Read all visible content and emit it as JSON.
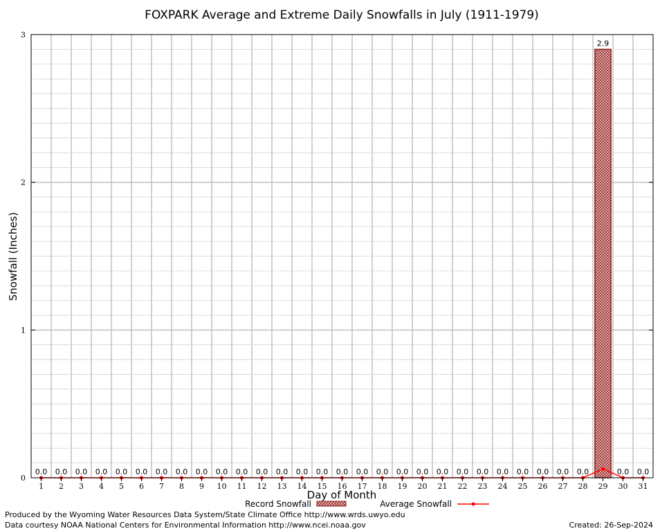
{
  "chart_data": {
    "type": "bar",
    "title": "FOXPARK Average and Extreme Daily Snowfalls in July (1911-1979)",
    "xlabel": "Day of Month",
    "ylabel": "Snowfall (Inches)",
    "ylim": [
      0,
      3
    ],
    "yticks": [
      "0",
      "1",
      "2",
      "3"
    ],
    "categories": [
      "1",
      "2",
      "3",
      "4",
      "5",
      "6",
      "7",
      "8",
      "9",
      "10",
      "11",
      "12",
      "13",
      "14",
      "15",
      "16",
      "17",
      "18",
      "19",
      "20",
      "21",
      "22",
      "23",
      "24",
      "25",
      "26",
      "27",
      "28",
      "29",
      "30",
      "31"
    ],
    "grid": true,
    "legend_position": "bottom",
    "series": [
      {
        "name": "Record Snowfall",
        "kind": "bar",
        "color": "#8b1a1a",
        "values": [
          0,
          0,
          0,
          0,
          0,
          0,
          0,
          0,
          0,
          0,
          0,
          0,
          0,
          0,
          0,
          0,
          0,
          0,
          0,
          0,
          0,
          0,
          0,
          0,
          0,
          0,
          0,
          0,
          2.9,
          0,
          0
        ],
        "labels": [
          "0.0",
          "0.0",
          "0.0",
          "0.0",
          "0.0",
          "0.0",
          "0.0",
          "0.0",
          "0.0",
          "0.0",
          "0.0",
          "0.0",
          "0.0",
          "0.0",
          "0.0",
          "0.0",
          "0.0",
          "0.0",
          "0.0",
          "0.0",
          "0.0",
          "0.0",
          "0.0",
          "0.0",
          "0.0",
          "0.0",
          "0.0",
          "0.0",
          "2.9",
          "0.0",
          "0.0"
        ]
      },
      {
        "name": "Average Snowfall",
        "kind": "line",
        "color": "#ff0000",
        "values": [
          0,
          0,
          0,
          0,
          0,
          0,
          0,
          0,
          0,
          0,
          0,
          0,
          0,
          0,
          0,
          0,
          0,
          0,
          0,
          0,
          0,
          0,
          0,
          0,
          0,
          0,
          0,
          0,
          0.06,
          0,
          0
        ]
      }
    ]
  },
  "footer": {
    "produced_by": "Produced by the Wyoming Water Resources Data System/State Climate Office http://www.wrds.uwyo.edu",
    "courtesy": "Data courtesy NOAA National Centers for Environmental Information http://www.ncei.noaa.gov",
    "created": "Created:  26-Sep-2024"
  }
}
